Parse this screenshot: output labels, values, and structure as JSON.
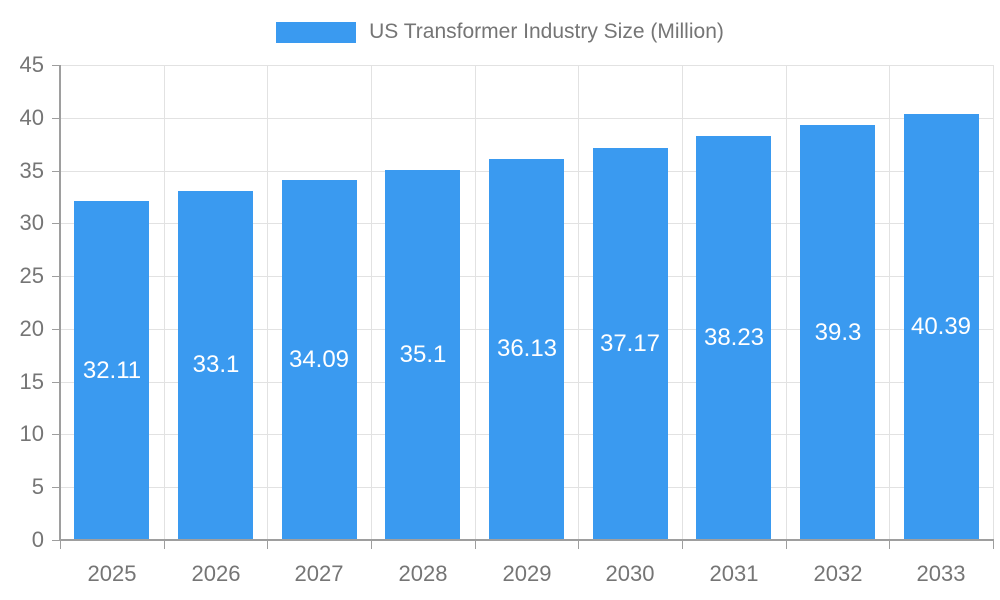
{
  "chart_data": {
    "type": "bar",
    "title": "",
    "legend_label": "US Transformer Industry Size (Million)",
    "categories": [
      "2025",
      "2026",
      "2027",
      "2028",
      "2029",
      "2030",
      "2031",
      "2032",
      "2033"
    ],
    "values": [
      32.11,
      33.1,
      34.09,
      35.1,
      36.13,
      37.17,
      38.23,
      39.3,
      40.39
    ],
    "value_labels": [
      "32.11",
      "33.1",
      "34.09",
      "35.1",
      "36.13",
      "37.17",
      "38.23",
      "39.3",
      "40.39"
    ],
    "xlabel": "",
    "ylabel": "",
    "ylim": [
      0,
      45
    ],
    "yticks": [
      0,
      5,
      10,
      15,
      20,
      25,
      30,
      35,
      40,
      45
    ],
    "grid": true,
    "legend_position": "top-center",
    "colors": {
      "bar": "#3a9af0",
      "value_label": "#ffffff",
      "axis_text": "#757575",
      "axis_line": "#9e9e9e",
      "gridline": "#e2e2e2",
      "background": "#ffffff"
    }
  }
}
